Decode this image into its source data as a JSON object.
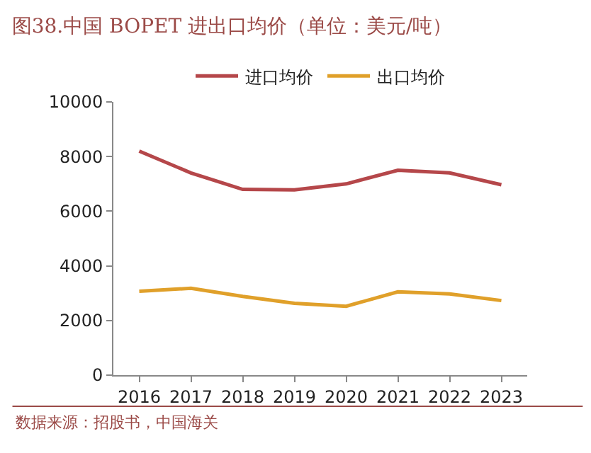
{
  "chart_data": {
    "type": "line",
    "title": "图38.中国 BOPET 进出口均价（单位：美元/吨）",
    "categories": [
      "2016",
      "2017",
      "2018",
      "2019",
      "2020",
      "2021",
      "2022",
      "2023"
    ],
    "series": [
      {
        "name": "进口均价",
        "color": "#b5474a",
        "values": [
          8200,
          7400,
          6800,
          6780,
          7000,
          7500,
          7400,
          6970
        ]
      },
      {
        "name": "出口均价",
        "color": "#e0a02a",
        "values": [
          3070,
          3180,
          2880,
          2630,
          2520,
          3050,
          2970,
          2730
        ]
      }
    ],
    "ylim": [
      0,
      10000
    ],
    "yticks": [
      0,
      2000,
      4000,
      6000,
      8000,
      10000
    ],
    "legend": "top",
    "marker": "none",
    "line_style": "solid",
    "annotations": [
      "数据来源：招股书，中国海关"
    ]
  }
}
